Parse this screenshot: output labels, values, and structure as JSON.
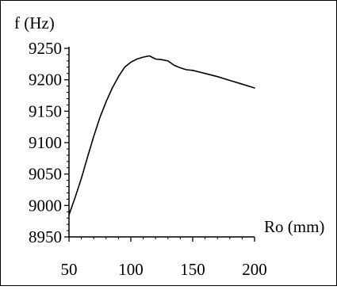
{
  "chart_data": {
    "type": "line",
    "ylabel": "f (Hz)",
    "xlabel": "Ro (mm)",
    "xlim": [
      50,
      200
    ],
    "ylim": [
      8950,
      9250
    ],
    "x_ticks": [
      50,
      100,
      150,
      200
    ],
    "y_ticks": [
      8950,
      9000,
      9050,
      9100,
      9150,
      9200,
      9250
    ],
    "x_tick_labels": [
      "50",
      "100",
      "150",
      "200"
    ],
    "y_tick_labels": [
      "8950",
      "9000",
      "9050",
      "9100",
      "9150",
      "9200",
      "9250"
    ],
    "grid": false,
    "legend": "none",
    "line_color": "#000000",
    "series": [
      {
        "x": [
          50,
          55,
          60,
          65,
          70,
          75,
          80,
          85,
          90,
          95,
          100,
          105,
          110,
          115,
          120,
          125,
          130,
          135,
          140,
          145,
          150,
          160,
          170,
          180,
          190,
          200
        ],
        "y": [
          8985,
          9013,
          9043,
          9077,
          9110,
          9140,
          9165,
          9187,
          9205,
          9220,
          9228,
          9233,
          9236,
          9238,
          9233,
          9232,
          9230,
          9223,
          9219,
          9216,
          9215,
          9210,
          9205,
          9199,
          9193,
          9187
        ]
      }
    ]
  }
}
